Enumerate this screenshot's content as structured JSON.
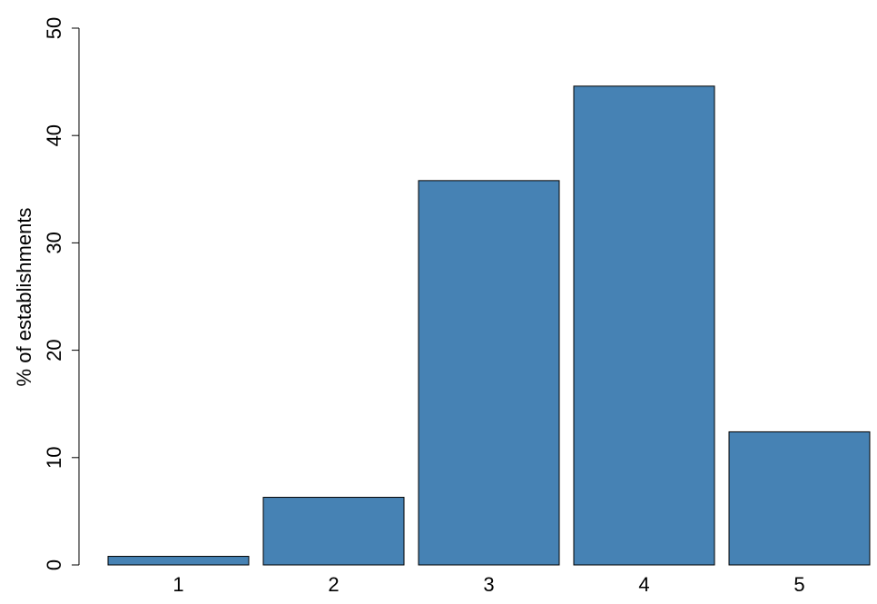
{
  "chart_data": {
    "type": "bar",
    "title": "",
    "xlabel": "",
    "ylabel": "% of establishments",
    "categories": [
      "1",
      "2",
      "3",
      "4",
      "5"
    ],
    "values": [
      0.8,
      6.3,
      35.8,
      44.6,
      12.4
    ],
    "ylim": [
      0,
      50
    ],
    "yticks": [
      "0",
      "10",
      "20",
      "30",
      "40",
      "50"
    ],
    "grid": false,
    "bar_color": "#4682B4",
    "bar_edge_color": "#000000"
  }
}
